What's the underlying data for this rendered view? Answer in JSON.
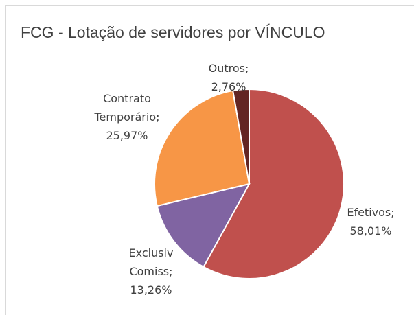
{
  "chart_data": {
    "type": "pie",
    "title": "FCG - Lotação de servidores por VÍNCULO",
    "categories": [
      "Efetivos;",
      "Exclusiv Comiss;",
      "Contrato Temporário;",
      "Outros;"
    ],
    "values": [
      58.01,
      13.26,
      25.97,
      2.76
    ],
    "value_labels": [
      "58,01%",
      "13,26%",
      "25,97%",
      "2,76%"
    ],
    "colors": [
      "#c0504d",
      "#8064a2",
      "#f79646",
      "#632523"
    ]
  }
}
